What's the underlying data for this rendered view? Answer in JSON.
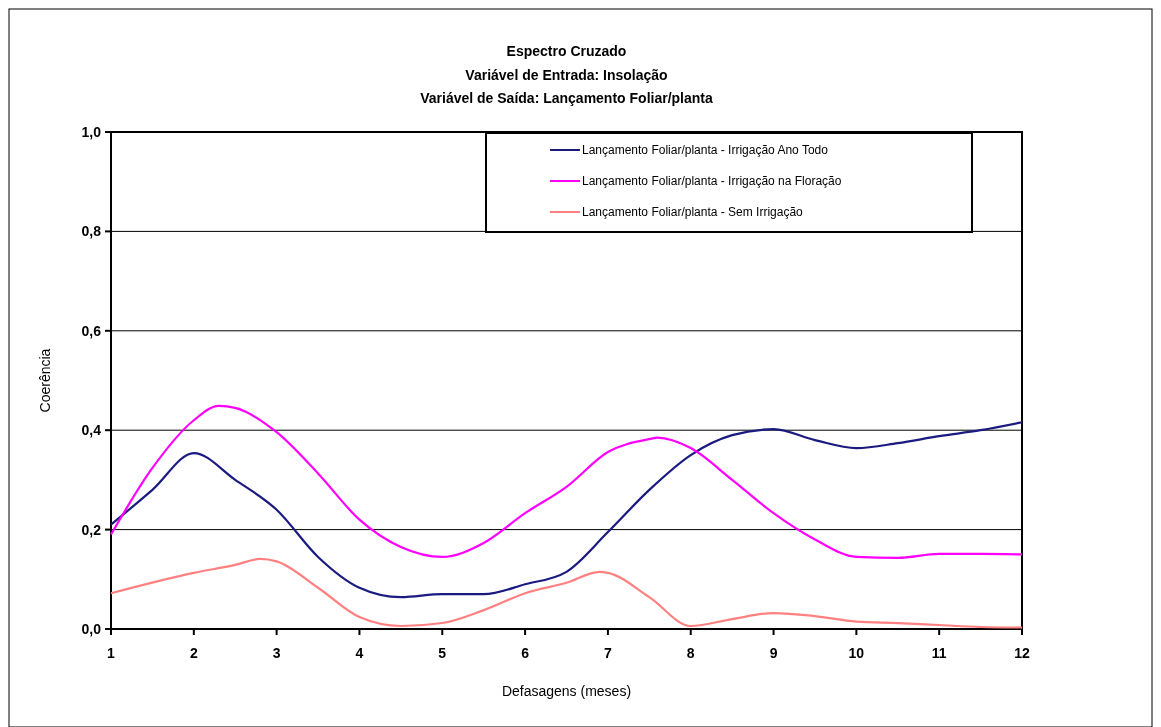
{
  "chart_data": {
    "type": "line",
    "title": "Espectro Cruzado",
    "subtitle": "Variável de Entrada: Insolação\nVariável de Saída: Lançamento Foliar/planta",
    "xlabel": "Defasagens (meses)",
    "ylabel": "Coerência",
    "xlim": [
      1,
      12
    ],
    "xticks": [
      1,
      2,
      3,
      4,
      5,
      6,
      7,
      8,
      9,
      10,
      11,
      12
    ],
    "ylim": [
      0,
      1
    ],
    "yticks": [
      {
        "value": 0,
        "label": "0,0"
      },
      {
        "value": 0.2,
        "label": "0,2"
      },
      {
        "value": 0.4,
        "label": "0,4"
      },
      {
        "value": 0.6,
        "label": "0,6"
      },
      {
        "value": 0.8,
        "label": "0,8"
      },
      {
        "value": 1,
        "label": "1,0"
      }
    ],
    "grid": "y",
    "legend": "top right",
    "line_style": "solid",
    "marker": "none",
    "series": [
      {
        "name": "Lançamento Foliar/planta - Irrigação Ano Todo",
        "color": "#1a1a80",
        "x": [
          1,
          1.5,
          2,
          2.5,
          3,
          3.5,
          4,
          4.5,
          5,
          5.5,
          6,
          6.5,
          7,
          7.5,
          8,
          8.5,
          9,
          9.5,
          10,
          10.5,
          11,
          11.5,
          12
        ],
        "values": [
          0.21,
          0.28,
          0.354,
          0.3,
          0.24,
          0.145,
          0.083,
          0.064,
          0.07,
          0.07,
          0.09,
          0.115,
          0.195,
          0.28,
          0.35,
          0.39,
          0.402,
          0.38,
          0.364,
          0.374,
          0.388,
          0.4,
          0.416
        ]
      },
      {
        "name": "Lançamento Foliar/planta - Irrigação na Floração",
        "color": "#ff00ff",
        "x": [
          1,
          1.5,
          2,
          2.3,
          2.5,
          3,
          3.5,
          4,
          4.5,
          5,
          5.5,
          6,
          6.5,
          7,
          7.5,
          7.6,
          8,
          8.5,
          9,
          9.5,
          10,
          10.5,
          11,
          11.5,
          12
        ],
        "values": [
          0.19,
          0.324,
          0.42,
          0.449,
          0.445,
          0.396,
          0.313,
          0.22,
          0.165,
          0.145,
          0.173,
          0.233,
          0.286,
          0.356,
          0.382,
          0.385,
          0.364,
          0.3,
          0.233,
          0.18,
          0.145,
          0.143,
          0.151,
          0.151,
          0.15
        ]
      },
      {
        "name": "Lançamento Foliar/planta - Sem Irrigação",
        "color": "#ff8080",
        "x": [
          1,
          2,
          2.5,
          2.8,
          3,
          3.5,
          4,
          4.5,
          5,
          5.5,
          6,
          6.5,
          6.9,
          7,
          7.5,
          8,
          8.5,
          9,
          9.5,
          10,
          10.5,
          11,
          11.5,
          12
        ],
        "values": [
          0.072,
          0.113,
          0.129,
          0.141,
          0.136,
          0.083,
          0.024,
          0.006,
          0.012,
          0.038,
          0.072,
          0.093,
          0.115,
          0.113,
          0.064,
          0.006,
          0.02,
          0.032,
          0.026,
          0.015,
          0.012,
          0.008,
          0.004,
          0.003
        ]
      }
    ]
  }
}
